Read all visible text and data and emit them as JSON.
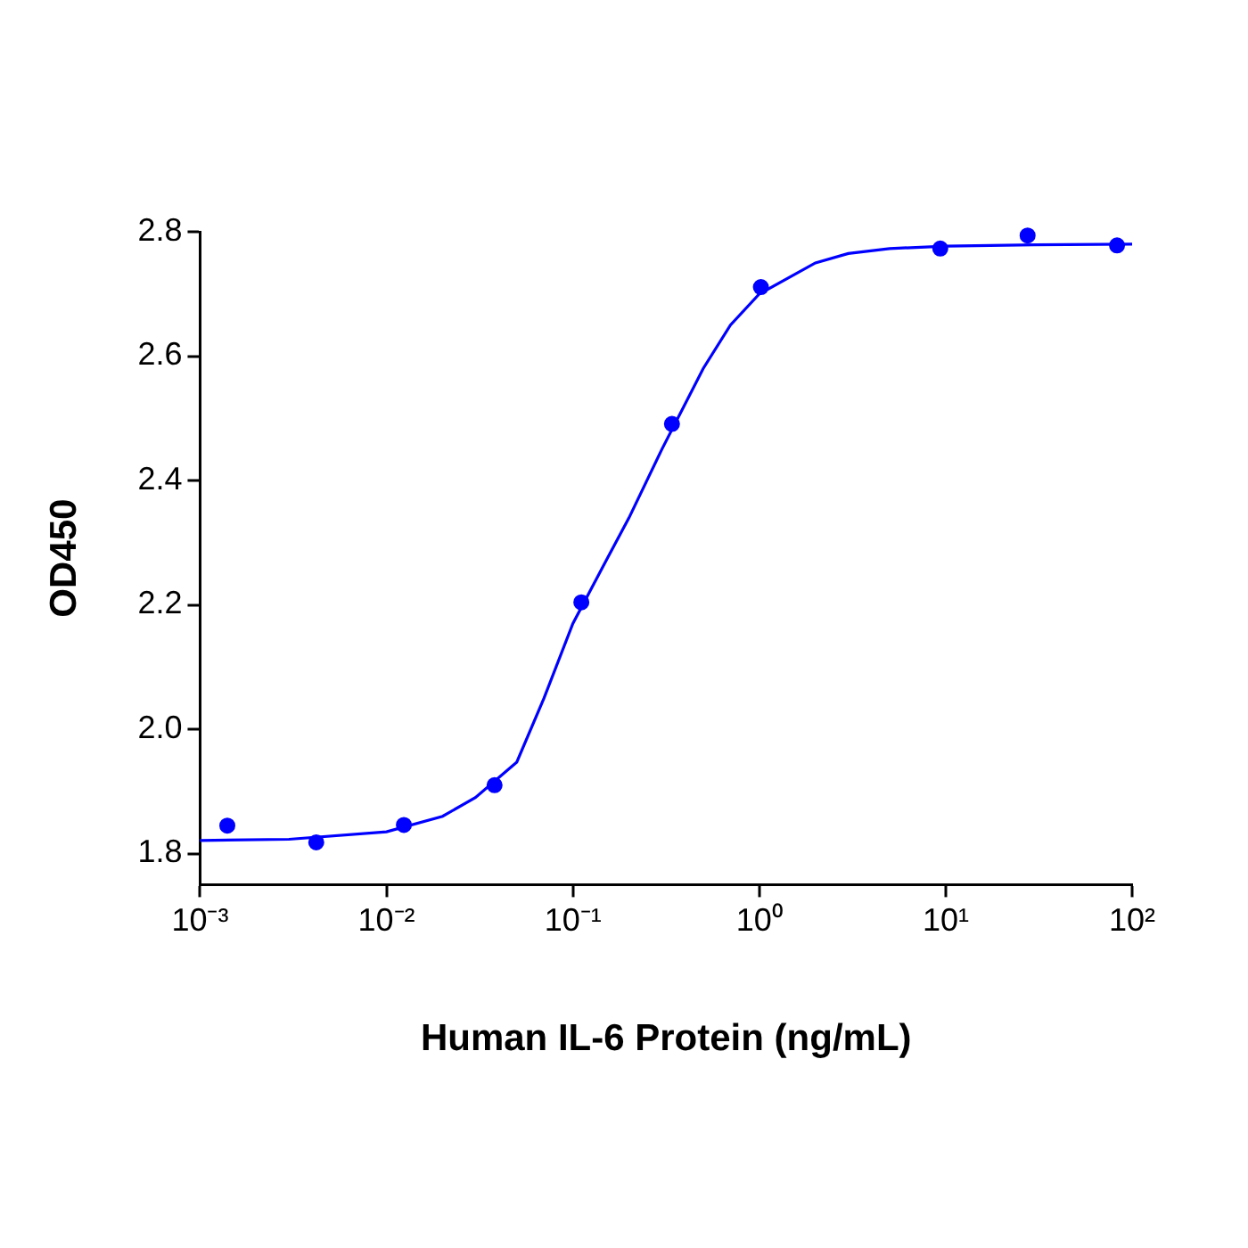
{
  "chart_data": {
    "type": "scatter",
    "xlabel": "Human IL-6 Protein (ng/mL)",
    "ylabel": "OD450",
    "log": "x",
    "xlim": [
      0.001,
      100
    ],
    "xticks": [
      {
        "value": 0.001,
        "label": "10⁻³"
      },
      {
        "value": 0.01,
        "label": "10⁻²"
      },
      {
        "value": 0.1,
        "label": "10⁻¹"
      },
      {
        "value": 1,
        "label": "10⁰"
      },
      {
        "value": 10,
        "label": "10¹"
      },
      {
        "value": 100,
        "label": "10²"
      }
    ],
    "ylim": [
      1.75,
      2.8
    ],
    "yticks": [
      {
        "value": 1.8,
        "label": "1.8"
      },
      {
        "value": 2.0,
        "label": "2.0"
      },
      {
        "value": 2.2,
        "label": "2.2"
      },
      {
        "value": 2.4,
        "label": "2.4"
      },
      {
        "value": 2.6,
        "label": "2.6"
      },
      {
        "value": 2.8,
        "label": "2.8"
      }
    ],
    "grid": false,
    "legend": false,
    "series": [
      {
        "marker": "circle",
        "color": "#0000ff",
        "x": [
          0.0014,
          0.0042,
          0.0124,
          0.038,
          0.111,
          0.34,
          1.02,
          9.35,
          27.5,
          83
        ],
        "values": [
          1.845,
          1.818,
          1.846,
          1.91,
          2.204,
          2.491,
          2.711,
          2.773,
          2.794,
          2.778
        ]
      },
      {
        "type": "line",
        "marker": "none",
        "line_style": "solid",
        "color": "#0000ff",
        "x": [
          0.001,
          0.003,
          0.01,
          0.02,
          0.03,
          0.05,
          0.07,
          0.1,
          0.15,
          0.2,
          0.3,
          0.5,
          0.7,
          1,
          2,
          3,
          5,
          10,
          30,
          100
        ],
        "values": [
          1.821,
          1.823,
          1.835,
          1.86,
          1.89,
          1.947,
          2.05,
          2.17,
          2.27,
          2.34,
          2.45,
          2.58,
          2.65,
          2.7,
          2.75,
          2.765,
          2.773,
          2.777,
          2.779,
          2.78
        ]
      }
    ]
  }
}
